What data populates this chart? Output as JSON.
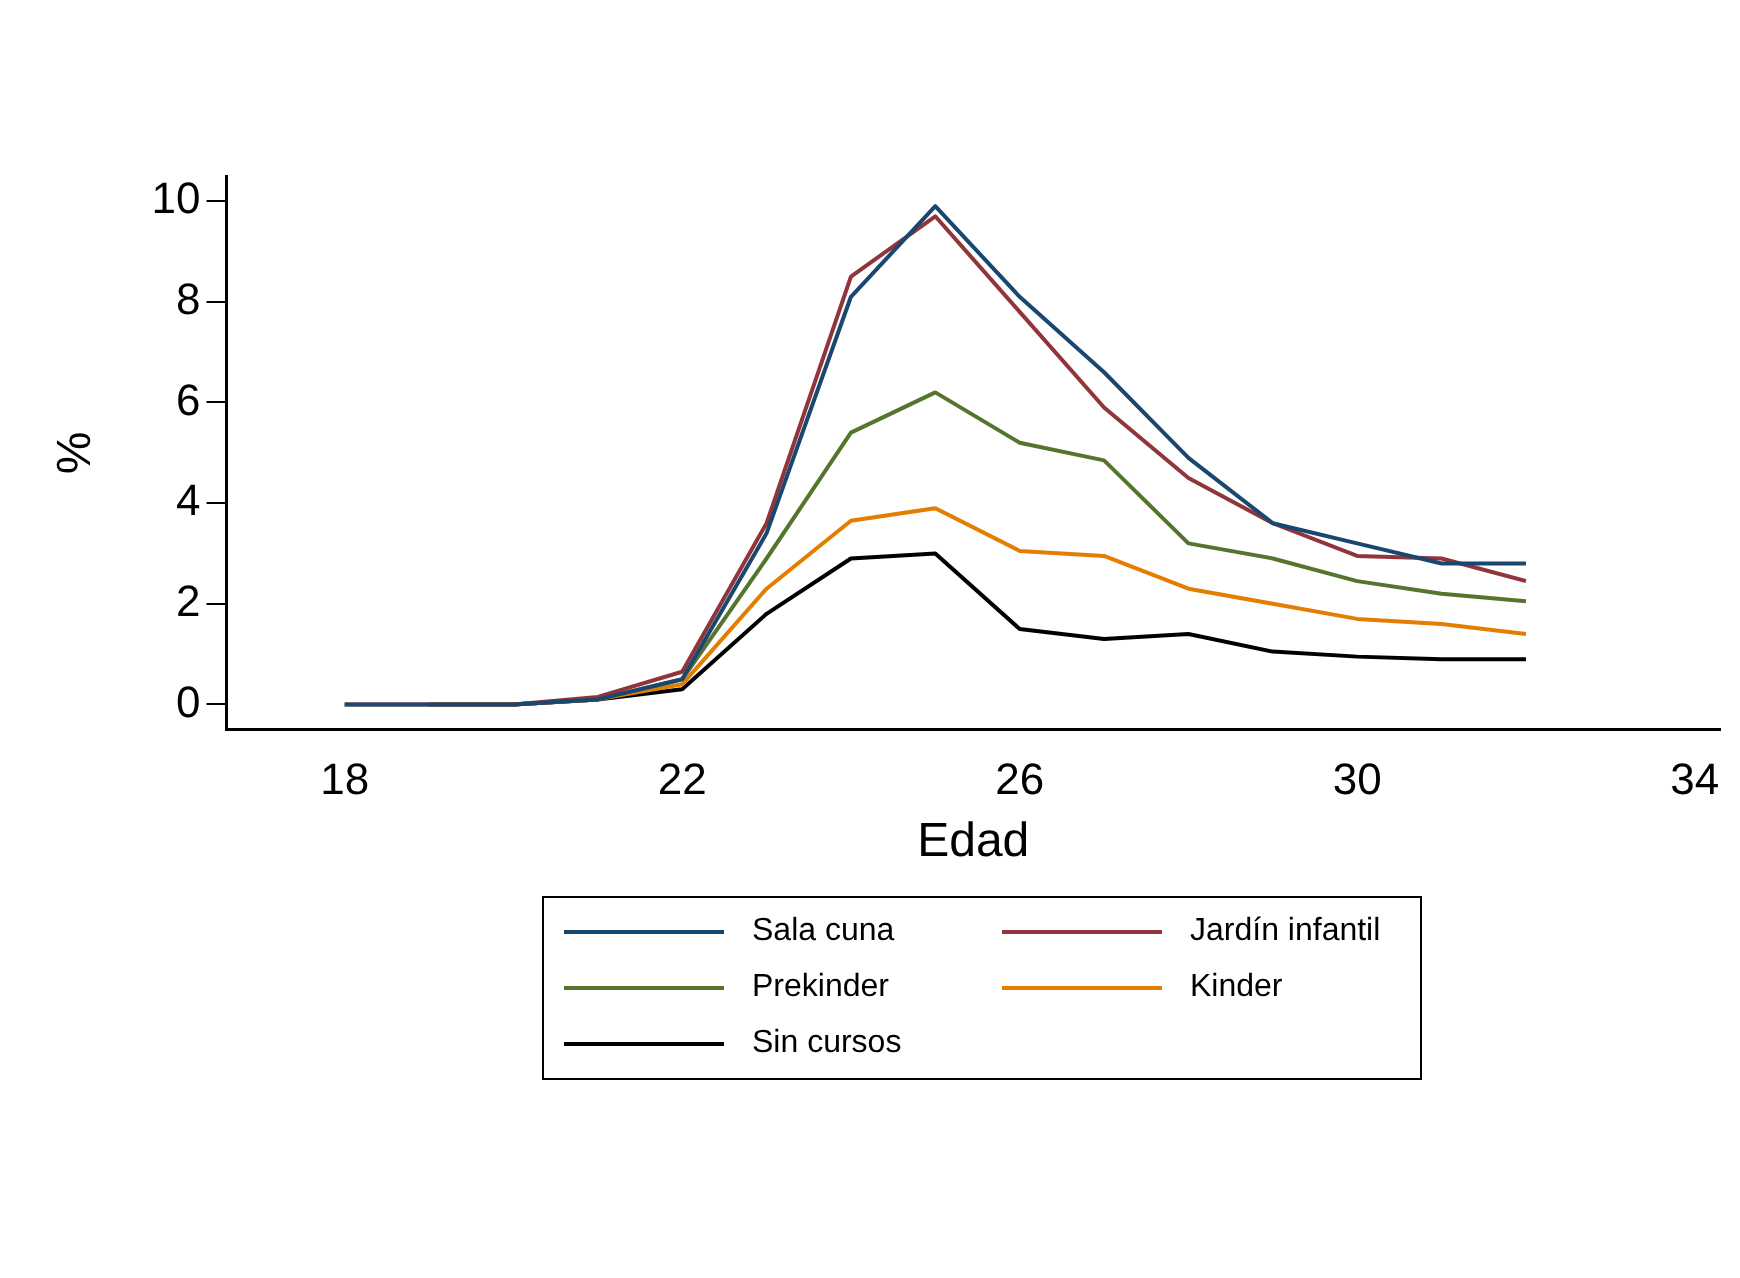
{
  "chart_data": {
    "type": "line",
    "xlabel": "Edad",
    "ylabel": "%",
    "xlim": [
      16.6,
      34.3
    ],
    "xticks": [
      18,
      22,
      26,
      30,
      34
    ],
    "ylim": [
      -0.5,
      10.5
    ],
    "yticks": [
      0,
      2,
      4,
      6,
      8,
      10
    ],
    "grid": false,
    "legend": "bottom",
    "marker": "none",
    "line_style": "solid",
    "series": [
      {
        "name": "Sala cuna",
        "color": "#1a476f",
        "x": [
          18,
          19,
          20,
          21,
          22,
          23,
          24,
          25,
          26,
          27,
          28,
          29,
          30,
          31,
          32
        ],
        "values": [
          0,
          0,
          0,
          0.1,
          0.5,
          3.4,
          8.1,
          9.9,
          8.1,
          6.6,
          4.9,
          3.6,
          3.2,
          2.8,
          2.8
        ]
      },
      {
        "name": "Jardín infantil",
        "color": "#90353b",
        "x": [
          18,
          19,
          20,
          21,
          22,
          23,
          24,
          25,
          26,
          27,
          28,
          29,
          30,
          31,
          32
        ],
        "values": [
          0,
          0,
          0,
          0.15,
          0.65,
          3.6,
          8.5,
          9.7,
          7.8,
          5.9,
          4.5,
          3.6,
          2.95,
          2.9,
          2.45
        ]
      },
      {
        "name": "Prekinder",
        "color": "#55752f",
        "x": [
          19,
          20,
          21,
          22,
          23,
          24,
          25,
          26,
          27,
          28,
          29,
          30,
          31,
          32
        ],
        "values": [
          0,
          0,
          0.1,
          0.5,
          2.9,
          5.4,
          6.2,
          5.2,
          4.85,
          3.2,
          2.9,
          2.45,
          2.2,
          2.05
        ]
      },
      {
        "name": "Kinder",
        "color": "#e37e00",
        "x": [
          19,
          20,
          21,
          22,
          23,
          24,
          25,
          26,
          27,
          28,
          29,
          30,
          31,
          32
        ],
        "values": [
          0,
          0,
          0.1,
          0.4,
          2.3,
          3.65,
          3.9,
          3.05,
          2.95,
          2.3,
          2.0,
          1.7,
          1.6,
          1.4
        ]
      },
      {
        "name": "Sin cursos",
        "color": "#000000",
        "x": [
          20,
          21,
          22,
          23,
          24,
          25,
          26,
          27,
          28,
          29,
          30,
          31,
          32
        ],
        "values": [
          0,
          0.1,
          0.3,
          1.8,
          2.9,
          3.0,
          1.5,
          1.3,
          1.4,
          1.05,
          0.95,
          0.9,
          0.9
        ]
      }
    ]
  }
}
